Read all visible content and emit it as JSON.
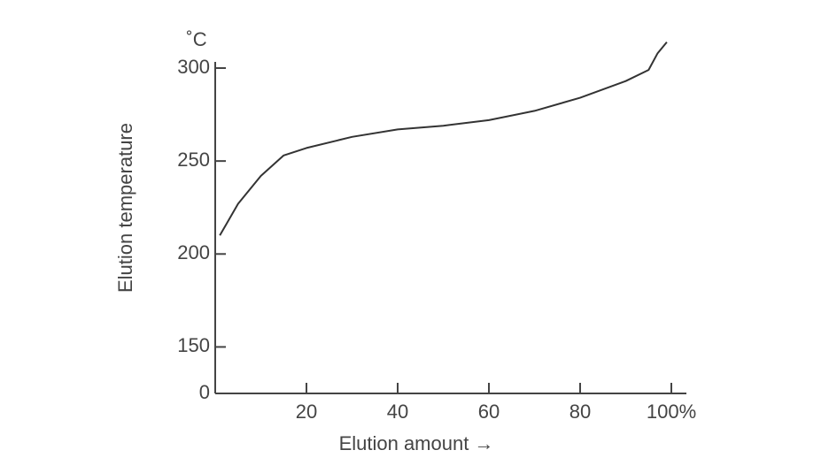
{
  "chart_data": {
    "type": "line",
    "y_unit": "˚C",
    "ylabel": "Elution temperature",
    "xlabel": "Elution amount →",
    "x": [
      1,
      5,
      10,
      15,
      20,
      30,
      40,
      50,
      60,
      70,
      80,
      90,
      95,
      97,
      99
    ],
    "series": [
      {
        "color": "#333333",
        "values": [
          210,
          227,
          242,
          253,
          257,
          263,
          267,
          269,
          272,
          277,
          284,
          293,
          299,
          308,
          314
        ]
      }
    ],
    "xlim": [
      0,
      100
    ],
    "xticks": [
      20,
      40,
      60,
      80,
      {
        "value": 100,
        "label": "100%"
      }
    ],
    "ylim": [
      0,
      300
    ],
    "yticks": [
      0,
      150,
      200,
      250,
      300
    ],
    "grid": false
  }
}
